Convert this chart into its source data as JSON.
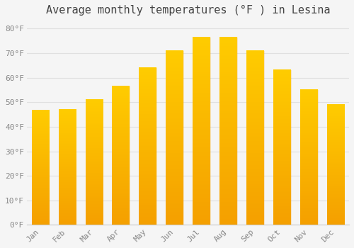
{
  "title": "Average monthly temperatures (°F ) in Lesina",
  "months": [
    "Jan",
    "Feb",
    "Mar",
    "Apr",
    "May",
    "Jun",
    "Jul",
    "Aug",
    "Sep",
    "Oct",
    "Nov",
    "Dec"
  ],
  "values": [
    46.5,
    47.0,
    51.0,
    56.5,
    64.0,
    71.0,
    76.5,
    76.5,
    71.0,
    63.0,
    55.0,
    49.0
  ],
  "bar_color_top": "#FFD700",
  "bar_color_bottom": "#F5A000",
  "bar_color_left": "#F5A000",
  "background_color": "#F5F5F5",
  "grid_color": "#E0E0E0",
  "yticks": [
    0,
    10,
    20,
    30,
    40,
    50,
    60,
    70,
    80
  ],
  "ylim": [
    0,
    83
  ],
  "title_fontsize": 11,
  "tick_fontsize": 8,
  "tick_color": "#888888",
  "title_color": "#444444",
  "font_family": "monospace",
  "bar_width": 0.65
}
